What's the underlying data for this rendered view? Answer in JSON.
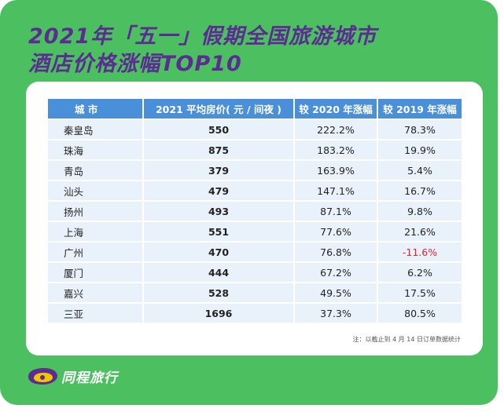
{
  "title_line1": "2021年「五一」假期全国旅游城市",
  "title_line2": "酒店价格涨幅TOP10",
  "chart_data": {
    "type": "table",
    "columns": [
      "城 市",
      "2021 平均房价( 元 / 间夜 )",
      "较 2020 年涨幅",
      "较 2019 年涨幅"
    ],
    "rows": [
      [
        "秦皇岛",
        "550",
        "222.2%",
        "78.3%"
      ],
      [
        "珠海",
        "875",
        "183.2%",
        "19.9%"
      ],
      [
        "青岛",
        "379",
        "163.9%",
        "5.4%"
      ],
      [
        "汕头",
        "479",
        "147.1%",
        "16.7%"
      ],
      [
        "扬州",
        "493",
        "87.1%",
        "9.8%"
      ],
      [
        "上海",
        "551",
        "77.6%",
        "21.6%"
      ],
      [
        "广州",
        "470",
        "76.8%",
        "-11.6%"
      ],
      [
        "厦门",
        "444",
        "67.2%",
        "6.2%"
      ],
      [
        "嘉兴",
        "528",
        "49.5%",
        "17.5%"
      ],
      [
        "三亚",
        "1696",
        "37.3%",
        "80.5%"
      ]
    ],
    "negative_color": "#e0242c"
  },
  "footnote": "注：以截止到 4 月 14 日订单数据统计",
  "brand": {
    "name": "同程旅行",
    "icon": "tongcheng-logo-icon"
  },
  "colors": {
    "background": "#4cc061",
    "title": "#5b2c91",
    "header": "#4a8fd9",
    "row": "#e9f1fb"
  }
}
